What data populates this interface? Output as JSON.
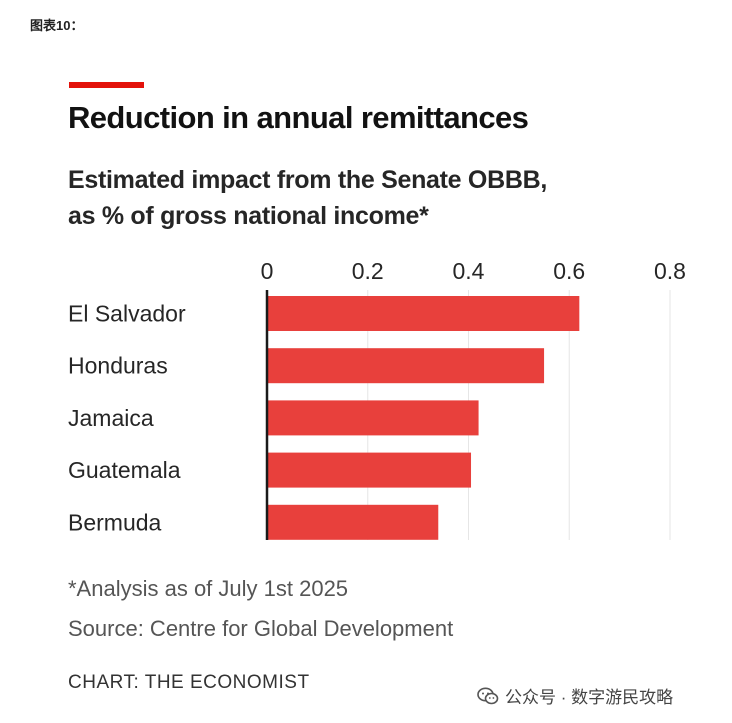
{
  "figure_label": "图表10：",
  "colors": {
    "accent": "#e3120b",
    "bar": "#e8403c",
    "axis": "#1a1a1a"
  },
  "chart_data": {
    "type": "bar",
    "orientation": "horizontal",
    "title": "Reduction in annual remittances",
    "subtitle_lines": [
      "Estimated impact from the Senate OBBB,",
      "as % of gross national income*"
    ],
    "categories": [
      "El Salvador",
      "Honduras",
      "Jamaica",
      "Guatemala",
      "Bermuda"
    ],
    "values": [
      0.62,
      0.55,
      0.42,
      0.405,
      0.34
    ],
    "x_ticks": [
      0,
      0.2,
      0.4,
      0.6,
      0.8
    ],
    "x_tick_labels": [
      "0",
      "0.2",
      "0.4",
      "0.6",
      "0.8"
    ],
    "xlim": [
      0,
      0.8
    ],
    "grid": true,
    "xlabel": "",
    "ylabel": ""
  },
  "footnote": "*Analysis as of July 1st 2025",
  "source": "Source: Centre for Global Development",
  "credit": "CHART: THE ECONOMIST",
  "wechat": {
    "icon": "wechat-icon",
    "text": "公众号 · 数字游民攻略"
  }
}
